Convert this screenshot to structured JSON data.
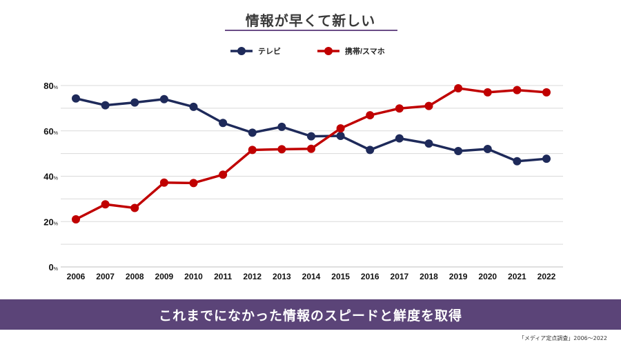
{
  "title": "情報が早くて新しい",
  "banner": "これまでになかった情報のスピードと鮮度を取得",
  "source": "「メディア定点調査」2006～2022",
  "colors": {
    "tv": "#1e2a5a",
    "mobile": "#c00000",
    "banner_bg": "#5b4478",
    "title_underline": "#6a4c86",
    "grid": "#d9d9d9"
  },
  "chart_data": {
    "type": "line",
    "x": [
      "2006",
      "2007",
      "2008",
      "2009",
      "2010",
      "2011",
      "2012",
      "2013",
      "2014",
      "2015",
      "2016",
      "2017",
      "2018",
      "2019",
      "2020",
      "2021",
      "2022"
    ],
    "y_ticks": [
      {
        "value": 0,
        "label": "0"
      },
      {
        "value": 20,
        "label": "20"
      },
      {
        "value": 40,
        "label": "40"
      },
      {
        "value": 60,
        "label": "60"
      },
      {
        "value": 80,
        "label": "80"
      }
    ],
    "y_unit": "%",
    "ylim": [
      0,
      80
    ],
    "grid": true,
    "legend_position": "top-center",
    "series": [
      {
        "name": "テレビ",
        "color": "#1e2a5a",
        "values": [
          74.3,
          71.3,
          72.5,
          74.0,
          70.6,
          63.5,
          59.2,
          61.8,
          57.6,
          57.8,
          51.6,
          56.7,
          54.4,
          51.1,
          52.0,
          46.6,
          47.7
        ]
      },
      {
        "name": "携帯/スマホ",
        "color": "#c00000",
        "values": [
          21.0,
          27.6,
          26.0,
          37.2,
          37.0,
          40.7,
          51.6,
          51.9,
          52.1,
          61.1,
          66.9,
          69.9,
          71.0,
          78.8,
          77.0,
          78.0,
          77.0
        ]
      }
    ]
  }
}
